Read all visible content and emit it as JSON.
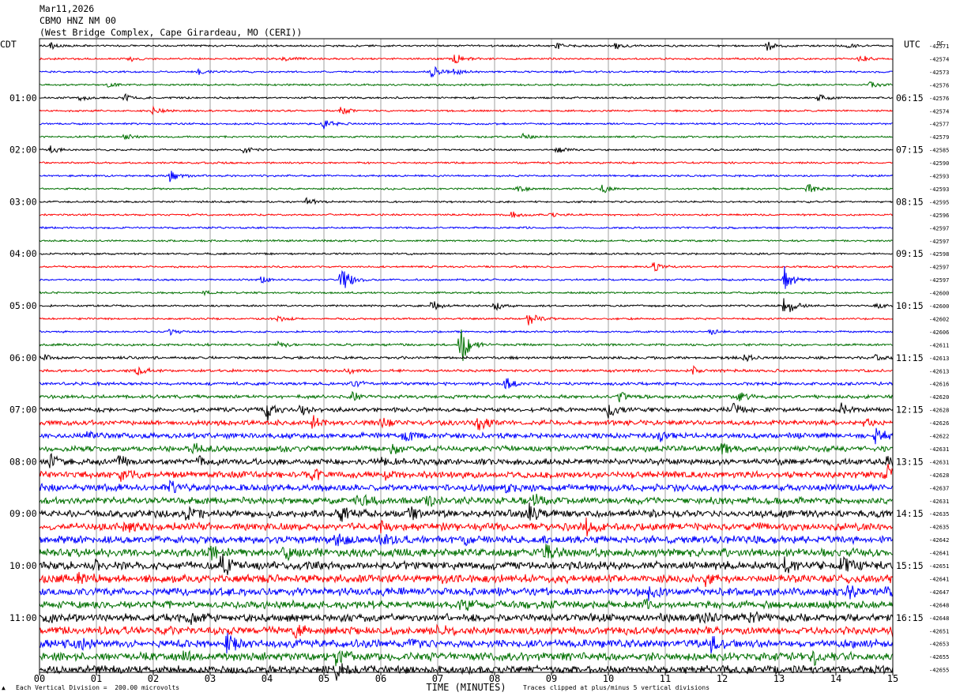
{
  "header": {
    "date": "Mar11,2026",
    "station": "CBMO HNZ NM 00",
    "location": "(West Bridge Complex, Cape Girardeau, MO (CERI))"
  },
  "left_timezone": "CDT",
  "right_timezone": "UTC",
  "dc_label": "DC",
  "footer": {
    "scale_note": "Each Vertical Division =  200.00 microvolts",
    "clip_note": "Traces clipped at plus/minus 5 vertical divisions",
    "corner_mark": "▲"
  },
  "chart_data": {
    "type": "line",
    "title": "CBMO HNZ NM 00",
    "xlabel": "TIME (MINUTES)",
    "ylabel": "",
    "xlim": [
      0,
      15
    ],
    "x_ticks": [
      "00",
      "01",
      "02",
      "03",
      "04",
      "05",
      "06",
      "07",
      "08",
      "09",
      "10",
      "11",
      "12",
      "13",
      "14",
      "15"
    ],
    "trace_minutes": 15,
    "trace_color_cycle": [
      "#000000",
      "#ff0000",
      "#0000ff",
      "#007000"
    ],
    "left_time_labels": [
      "01:00",
      "02:00",
      "03:00",
      "04:00",
      "05:00",
      "06:00",
      "07:00",
      "08:00",
      "09:00",
      "10:00",
      "11:00"
    ],
    "right_time_labels": [
      "06:15",
      "07:15",
      "08:15",
      "09:15",
      "10:15",
      "11:15",
      "12:15",
      "13:15",
      "14:15",
      "15:15",
      "16:15"
    ],
    "time_label_every_n_traces": 4,
    "time_label_first_trace": 4,
    "dc_offsets": [
      "-42571",
      "-42574",
      "-42573",
      "-42576",
      "-42576",
      "-42574",
      "-42577",
      "-42579",
      "-42585",
      "-42590",
      "-42593",
      "-42593",
      "-42595",
      "-42596",
      "-42597",
      "-42597",
      "-42598",
      "-42597",
      "-42597",
      "-42600",
      "-42600",
      "-42602",
      "-42606",
      "-42611",
      "-42613",
      "-42613",
      "-42616",
      "-42620",
      "-42628",
      "-42626",
      "-42622",
      "-42631",
      "-42631",
      "-42628",
      "-42637",
      "-42631",
      "-42635",
      "-42635",
      "-42642",
      "-42641",
      "-42651",
      "-42641",
      "-42647",
      "-42648",
      "-42648",
      "-42651",
      "-42653",
      "-42655",
      "-42655"
    ],
    "trace_noise_level": [
      1,
      1,
      1,
      1,
      1,
      1,
      1,
      1,
      1,
      1,
      1,
      1,
      1,
      1,
      1,
      1,
      1,
      1,
      1,
      1,
      1,
      1,
      1,
      1.2,
      1.4,
      1.4,
      1.6,
      1.8,
      2.2,
      2.6,
      2.8,
      3,
      3.2,
      3.4,
      3.6,
      3.6,
      3.8,
      4,
      4,
      4.2,
      4.2,
      4.2,
      4,
      4,
      4,
      4,
      4.2,
      4.2,
      4.2
    ],
    "events": [
      {
        "trace": 0,
        "minute": 0.2,
        "amp": 4
      },
      {
        "trace": 0,
        "minute": 9.1,
        "amp": 5
      },
      {
        "trace": 0,
        "minute": 10.1,
        "amp": 4
      },
      {
        "trace": 0,
        "minute": 12.8,
        "amp": 7
      },
      {
        "trace": 0,
        "minute": 14.2,
        "amp": 4
      },
      {
        "trace": 1,
        "minute": 1.6,
        "amp": 4
      },
      {
        "trace": 1,
        "minute": 4.3,
        "amp": 4
      },
      {
        "trace": 1,
        "minute": 7.3,
        "amp": 9
      },
      {
        "trace": 1,
        "minute": 14.4,
        "amp": 6
      },
      {
        "trace": 2,
        "minute": 6.9,
        "amp": 8
      },
      {
        "trace": 2,
        "minute": 7.3,
        "amp": 5
      },
      {
        "trace": 2,
        "minute": 2.8,
        "amp": 3
      },
      {
        "trace": 3,
        "minute": 1.2,
        "amp": 3
      },
      {
        "trace": 3,
        "minute": 14.6,
        "amp": 4
      },
      {
        "trace": 4,
        "minute": 0.7,
        "amp": 4
      },
      {
        "trace": 4,
        "minute": 1.5,
        "amp": 5
      },
      {
        "trace": 4,
        "minute": 13.7,
        "amp": 5
      },
      {
        "trace": 5,
        "minute": 2.0,
        "amp": 5
      },
      {
        "trace": 5,
        "minute": 5.3,
        "amp": 5
      },
      {
        "trace": 6,
        "minute": 5.0,
        "amp": 6
      },
      {
        "trace": 7,
        "minute": 1.5,
        "amp": 4
      },
      {
        "trace": 7,
        "minute": 8.5,
        "amp": 3
      },
      {
        "trace": 8,
        "minute": 0.2,
        "amp": 5
      },
      {
        "trace": 8,
        "minute": 3.6,
        "amp": 5
      },
      {
        "trace": 8,
        "minute": 9.1,
        "amp": 5
      },
      {
        "trace": 10,
        "minute": 2.3,
        "amp": 8
      },
      {
        "trace": 11,
        "minute": 8.4,
        "amp": 6
      },
      {
        "trace": 11,
        "minute": 9.9,
        "amp": 5
      },
      {
        "trace": 11,
        "minute": 13.5,
        "amp": 7
      },
      {
        "trace": 12,
        "minute": 4.7,
        "amp": 6
      },
      {
        "trace": 13,
        "minute": 8.3,
        "amp": 4
      },
      {
        "trace": 13,
        "minute": 9.0,
        "amp": 3
      },
      {
        "trace": 17,
        "minute": 10.8,
        "amp": 6
      },
      {
        "trace": 18,
        "minute": 5.3,
        "amp": 22
      },
      {
        "trace": 18,
        "minute": 3.9,
        "amp": 6
      },
      {
        "trace": 18,
        "minute": 13.1,
        "amp": 18
      },
      {
        "trace": 19,
        "minute": 2.9,
        "amp": 3
      },
      {
        "trace": 20,
        "minute": 6.9,
        "amp": 7
      },
      {
        "trace": 20,
        "minute": 8.0,
        "amp": 6
      },
      {
        "trace": 20,
        "minute": 13.1,
        "amp": 22
      },
      {
        "trace": 20,
        "minute": 14.7,
        "amp": 4
      },
      {
        "trace": 21,
        "minute": 8.6,
        "amp": 9
      },
      {
        "trace": 21,
        "minute": 4.2,
        "amp": 4
      },
      {
        "trace": 22,
        "minute": 2.3,
        "amp": 4
      },
      {
        "trace": 22,
        "minute": 11.8,
        "amp": 4
      },
      {
        "trace": 23,
        "minute": 7.4,
        "amp": 28
      },
      {
        "trace": 23,
        "minute": 4.2,
        "amp": 4
      },
      {
        "trace": 24,
        "minute": 0.1,
        "amp": 3
      },
      {
        "trace": 24,
        "minute": 12.4,
        "amp": 4
      },
      {
        "trace": 24,
        "minute": 14.7,
        "amp": 4
      },
      {
        "trace": 25,
        "minute": 1.7,
        "amp": 8
      },
      {
        "trace": 25,
        "minute": 5.4,
        "amp": 6
      },
      {
        "trace": 25,
        "minute": 11.5,
        "amp": 5
      },
      {
        "trace": 26,
        "minute": 5.5,
        "amp": 6
      },
      {
        "trace": 26,
        "minute": 8.2,
        "amp": 8
      },
      {
        "trace": 27,
        "minute": 5.5,
        "amp": 6
      },
      {
        "trace": 27,
        "minute": 10.2,
        "amp": 6
      },
      {
        "trace": 27,
        "minute": 12.3,
        "amp": 7
      },
      {
        "trace": 28,
        "minute": 4.0,
        "amp": 14
      },
      {
        "trace": 28,
        "minute": 4.6,
        "amp": 7
      },
      {
        "trace": 28,
        "minute": 10.0,
        "amp": 10
      },
      {
        "trace": 28,
        "minute": 12.2,
        "amp": 8
      },
      {
        "trace": 28,
        "minute": 14.1,
        "amp": 7
      },
      {
        "trace": 29,
        "minute": 4.8,
        "amp": 10
      },
      {
        "trace": 29,
        "minute": 7.7,
        "amp": 12
      },
      {
        "trace": 29,
        "minute": 6.0,
        "amp": 6
      },
      {
        "trace": 29,
        "minute": 14.5,
        "amp": 6
      },
      {
        "trace": 30,
        "minute": 0.8,
        "amp": 6
      },
      {
        "trace": 30,
        "minute": 6.4,
        "amp": 8
      },
      {
        "trace": 30,
        "minute": 10.9,
        "amp": 6
      },
      {
        "trace": 30,
        "minute": 14.7,
        "amp": 9
      },
      {
        "trace": 31,
        "minute": 2.7,
        "amp": 8
      },
      {
        "trace": 31,
        "minute": 6.2,
        "amp": 7
      },
      {
        "trace": 31,
        "minute": 12.0,
        "amp": 8
      },
      {
        "trace": 32,
        "minute": 0.2,
        "amp": 8
      },
      {
        "trace": 32,
        "minute": 1.4,
        "amp": 7
      },
      {
        "trace": 32,
        "minute": 2.8,
        "amp": 6
      },
      {
        "trace": 32,
        "minute": 6.0,
        "amp": 6
      },
      {
        "trace": 32,
        "minute": 14.9,
        "amp": 8
      },
      {
        "trace": 33,
        "minute": 1.4,
        "amp": 8
      },
      {
        "trace": 33,
        "minute": 4.8,
        "amp": 7
      },
      {
        "trace": 33,
        "minute": 6.1,
        "amp": 6
      },
      {
        "trace": 33,
        "minute": 14.9,
        "amp": 12
      },
      {
        "trace": 34,
        "minute": 2.3,
        "amp": 6
      },
      {
        "trace": 34,
        "minute": 8.2,
        "amp": 6
      },
      {
        "trace": 35,
        "minute": 5.6,
        "amp": 8
      },
      {
        "trace": 35,
        "minute": 6.8,
        "amp": 6
      },
      {
        "trace": 35,
        "minute": 8.7,
        "amp": 9
      },
      {
        "trace": 36,
        "minute": 2.6,
        "amp": 14
      },
      {
        "trace": 36,
        "minute": 5.3,
        "amp": 8
      },
      {
        "trace": 36,
        "minute": 6.5,
        "amp": 8
      },
      {
        "trace": 36,
        "minute": 8.6,
        "amp": 12
      },
      {
        "trace": 37,
        "minute": 1.5,
        "amp": 6
      },
      {
        "trace": 37,
        "minute": 9.6,
        "amp": 12
      },
      {
        "trace": 37,
        "minute": 6.0,
        "amp": 6
      },
      {
        "trace": 38,
        "minute": 5.2,
        "amp": 8
      },
      {
        "trace": 38,
        "minute": 6.0,
        "amp": 6
      },
      {
        "trace": 38,
        "minute": 7.5,
        "amp": 6
      },
      {
        "trace": 39,
        "minute": 3.0,
        "amp": 7
      },
      {
        "trace": 39,
        "minute": 8.9,
        "amp": 10
      },
      {
        "trace": 39,
        "minute": 4.3,
        "amp": 7
      },
      {
        "trace": 40,
        "minute": 3.2,
        "amp": 16
      },
      {
        "trace": 40,
        "minute": 1.0,
        "amp": 6
      },
      {
        "trace": 40,
        "minute": 13.1,
        "amp": 9
      },
      {
        "trace": 40,
        "minute": 14.1,
        "amp": 12
      },
      {
        "trace": 41,
        "minute": 0.7,
        "amp": 6
      },
      {
        "trace": 41,
        "minute": 7.1,
        "amp": 6
      },
      {
        "trace": 41,
        "minute": 11.7,
        "amp": 6
      },
      {
        "trace": 42,
        "minute": 10.7,
        "amp": 9
      },
      {
        "trace": 42,
        "minute": 14.2,
        "amp": 8
      },
      {
        "trace": 42,
        "minute": 14.9,
        "amp": 6
      },
      {
        "trace": 43,
        "minute": 7.4,
        "amp": 7
      },
      {
        "trace": 43,
        "minute": 10.6,
        "amp": 8
      },
      {
        "trace": 44,
        "minute": 2.6,
        "amp": 8
      },
      {
        "trace": 44,
        "minute": 11.6,
        "amp": 8
      },
      {
        "trace": 44,
        "minute": 12.5,
        "amp": 7
      },
      {
        "trace": 44,
        "minute": 0.1,
        "amp": 5
      },
      {
        "trace": 45,
        "minute": 4.5,
        "amp": 6
      },
      {
        "trace": 45,
        "minute": 7.0,
        "amp": 6
      },
      {
        "trace": 45,
        "minute": 15.0,
        "amp": 6
      },
      {
        "trace": 46,
        "minute": 3.3,
        "amp": 14
      },
      {
        "trace": 46,
        "minute": 11.8,
        "amp": 8
      },
      {
        "trace": 46,
        "minute": 0.7,
        "amp": 6
      },
      {
        "trace": 46,
        "minute": 6.5,
        "amp": 6
      },
      {
        "trace": 47,
        "minute": 5.2,
        "amp": 10
      },
      {
        "trace": 47,
        "minute": 13.6,
        "amp": 8
      },
      {
        "trace": 47,
        "minute": 2.5,
        "amp": 6
      },
      {
        "trace": 48,
        "minute": 5.2,
        "amp": 14
      }
    ]
  }
}
